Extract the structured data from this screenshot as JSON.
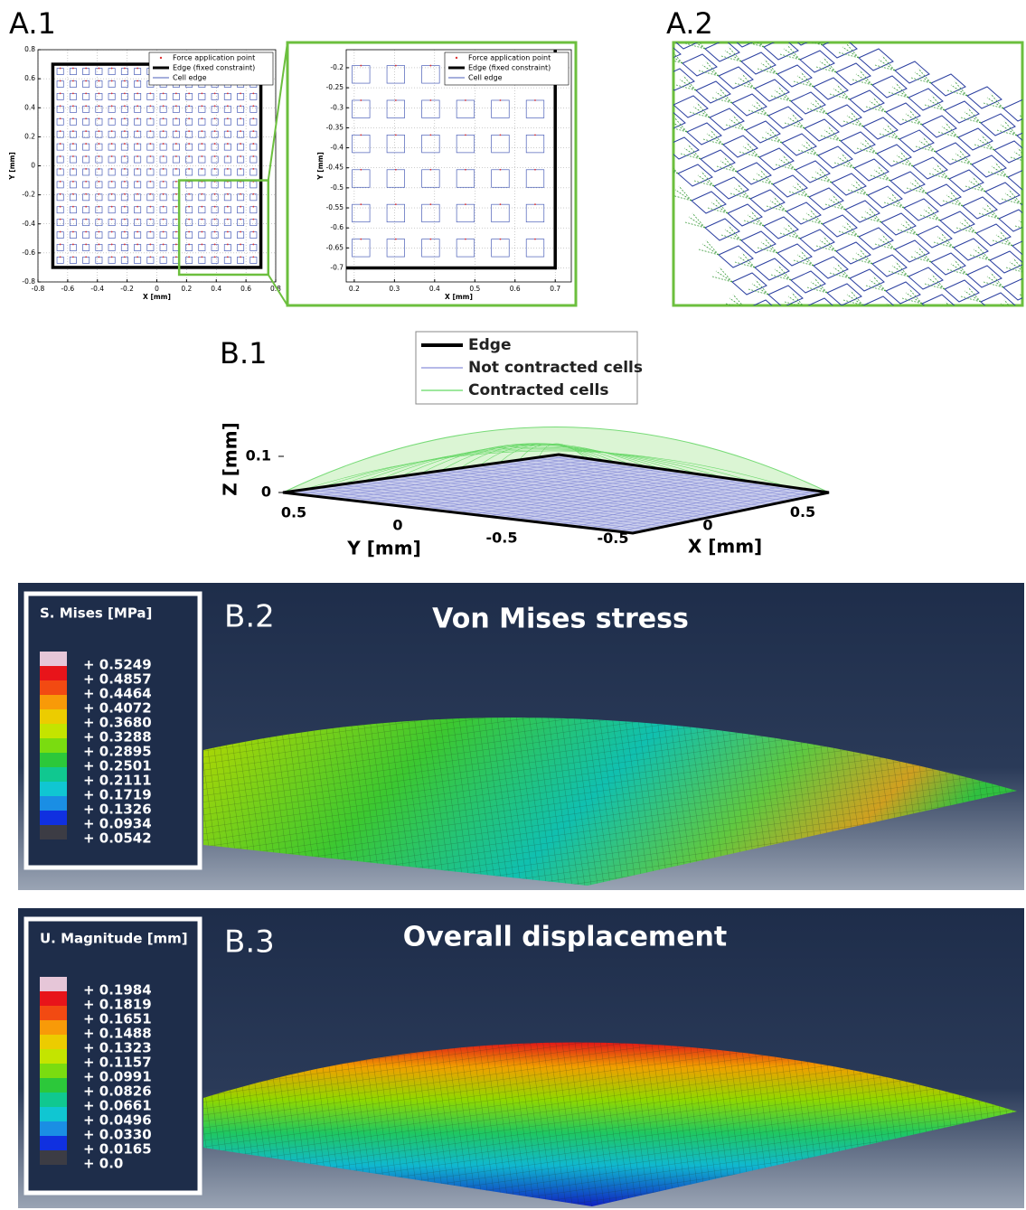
{
  "panels": {
    "a1": {
      "label": "A.1",
      "main": {
        "xlabel": "X [mm]",
        "ylabel": "Y [mm]",
        "xlim": [
          -0.8,
          0.8
        ],
        "ylim": [
          -0.8,
          0.8
        ],
        "xticks": [
          -0.8,
          -0.6,
          -0.4,
          -0.2,
          0,
          0.2,
          0.4,
          0.6,
          0.8
        ],
        "yticks": [
          -0.8,
          -0.6,
          -0.4,
          -0.2,
          0,
          0.2,
          0.4,
          0.6,
          0.8
        ],
        "legend": [
          "Force application point",
          "Edge (fixed constraint)",
          "Cell edge"
        ]
      },
      "inset": {
        "xlabel": "X [mm]",
        "ylabel": "Y [mm]",
        "xlim": [
          0.18,
          0.74
        ],
        "ylim": [
          -0.735,
          -0.155
        ],
        "xticks": [
          0.2,
          0.3,
          0.4,
          0.5,
          0.6,
          0.7
        ],
        "yticks": [
          -0.2,
          -0.25,
          -0.3,
          -0.35,
          -0.4,
          -0.45,
          -0.5,
          -0.55,
          -0.6,
          -0.65,
          -0.7
        ],
        "legend": [
          "Force application point",
          "Edge (fixed constraint)",
          "Cell edge"
        ]
      }
    },
    "a2": {
      "label": "A.2"
    },
    "b1": {
      "label": "B.1",
      "legend": [
        "Edge",
        "Not contracted cells",
        "Contracted cells"
      ],
      "zlabel": "Z [mm]",
      "zticks": [
        0,
        0.1
      ],
      "ylabel": "Y [mm]",
      "yticks": [
        0.5,
        0,
        -0.5
      ],
      "xlabel": "X [mm]",
      "xticks": [
        -0.5,
        0,
        0.5
      ]
    },
    "b2": {
      "label": "B.2",
      "title": "Von Mises stress",
      "legend_title": "S. Mises [MPa]",
      "levels": [
        {
          "label": "+ 0.5249",
          "color": "#e6c6d8"
        },
        {
          "label": "+ 0.4857",
          "color": "#e8141a"
        },
        {
          "label": "+ 0.4464",
          "color": "#f24a12"
        },
        {
          "label": "+ 0.4072",
          "color": "#f89a08"
        },
        {
          "label": "+ 0.3680",
          "color": "#eccc00"
        },
        {
          "label": "+ 0.3288",
          "color": "#c4e400"
        },
        {
          "label": "+ 0.2895",
          "color": "#7adc10"
        },
        {
          "label": "+ 0.2501",
          "color": "#2cc83a"
        },
        {
          "label": "+ 0.2111",
          "color": "#10c890"
        },
        {
          "label": "+ 0.1719",
          "color": "#10c6d2"
        },
        {
          "label": "+ 0.1326",
          "color": "#1a8ee4"
        },
        {
          "label": "+ 0.0934",
          "color": "#1030e0"
        },
        {
          "label": "+ 0.0542",
          "color": "#3c3c44"
        }
      ]
    },
    "b3": {
      "label": "B.3",
      "title": "Overall displacement",
      "legend_title": "U. Magnitude [mm]",
      "levels": [
        {
          "label": "+ 0.1984",
          "color": "#e6c6d8"
        },
        {
          "label": "+ 0.1819",
          "color": "#e8141a"
        },
        {
          "label": "+ 0.1651",
          "color": "#f24a12"
        },
        {
          "label": "+ 0.1488",
          "color": "#f89a08"
        },
        {
          "label": "+ 0.1323",
          "color": "#eccc00"
        },
        {
          "label": "+ 0.1157",
          "color": "#c4e400"
        },
        {
          "label": "+ 0.0991",
          "color": "#7adc10"
        },
        {
          "label": "+ 0.0826",
          "color": "#2cc83a"
        },
        {
          "label": "+ 0.0661",
          "color": "#10c890"
        },
        {
          "label": "+ 0.0496",
          "color": "#10c6d2"
        },
        {
          "label": "+ 0.0330",
          "color": "#1a8ee4"
        },
        {
          "label": "+ 0.0165",
          "color": "#1030e0"
        },
        {
          "label": "+ 0.0",
          "color": "#3c3c44"
        }
      ]
    }
  }
}
